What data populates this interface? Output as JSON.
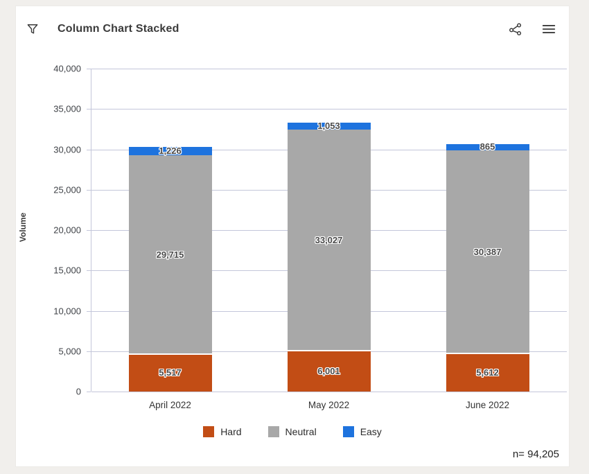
{
  "header": {
    "title": "Column Chart Stacked",
    "filter_icon": "funnel-filter",
    "share_icon": "share-network",
    "menu_icon": "hamburger-menu"
  },
  "chart_data": {
    "type": "bar",
    "stacked": true,
    "title": "Column Chart Stacked",
    "categories": [
      "April 2022",
      "May 2022",
      "June 2022"
    ],
    "series": [
      {
        "name": "Hard",
        "color": "#c24d15",
        "values": [
          5517,
          6001,
          5612
        ],
        "labels": [
          "5,517",
          "6,001",
          "5,612"
        ]
      },
      {
        "name": "Neutral",
        "color": "#a8a8a8",
        "values": [
          29715,
          33027,
          30387
        ],
        "labels": [
          "29,715",
          "33,027",
          "30,387"
        ]
      },
      {
        "name": "Easy",
        "color": "#1e73de",
        "values": [
          1226,
          1053,
          865
        ],
        "labels": [
          "1,226",
          "1,053",
          "865"
        ]
      }
    ],
    "xlabel": "",
    "ylabel": "Volume",
    "ylim": [
      0,
      40000
    ],
    "ytick_step": 5000,
    "yticks": [
      "0",
      "5,000",
      "10,000",
      "15,000",
      "20,000",
      "25,000",
      "30,000",
      "35,000",
      "40,000"
    ],
    "grid": true,
    "gridline_color": "#c3c6da",
    "legend_position": "bottom",
    "label_halo": "#ffffff"
  },
  "footer": {
    "n_label": "n= 94,205",
    "n_value": 94205
  }
}
